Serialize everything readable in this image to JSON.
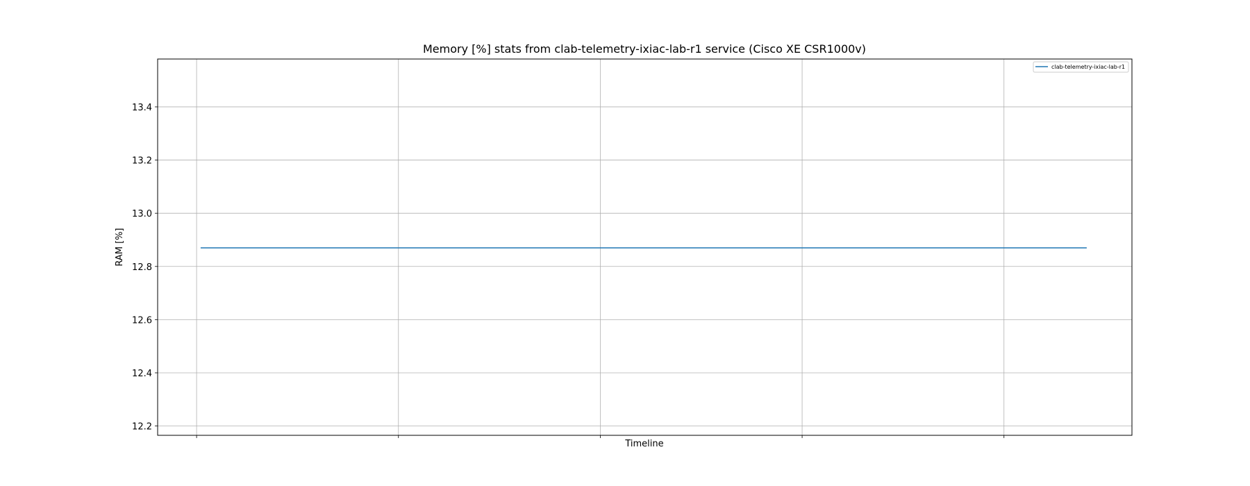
{
  "chart_data": {
    "type": "line",
    "title": "Memory [%] stats from clab-telemetry-ixiac-lab-r1 service (Cisco XE CSR1000v)",
    "xlabel": "Timeline",
    "ylabel": "RAM [%]",
    "ylim": [
      12.165,
      13.58
    ],
    "yticks": [
      12.2,
      12.4,
      12.6,
      12.8,
      13.0,
      13.2,
      13.4
    ],
    "ytick_labels": [
      "12.2",
      "12.4",
      "12.6",
      "12.8",
      "13.0",
      "13.2",
      "13.4"
    ],
    "xlim": [
      -0.193,
      4.634
    ],
    "xgrid": [
      0,
      1,
      2,
      3,
      4
    ],
    "grid": true,
    "legend_position": "upper right",
    "series": [
      {
        "name": "clab-telemetry-ixiac-lab-r1",
        "color": "#1f77b4",
        "x": [
          0.02,
          4.41
        ],
        "y": [
          12.87,
          12.87
        ]
      }
    ]
  }
}
